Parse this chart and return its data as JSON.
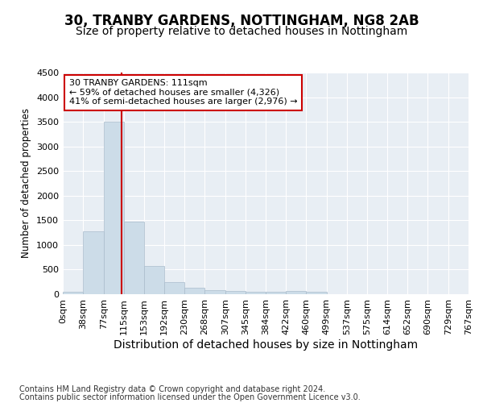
{
  "title": "30, TRANBY GARDENS, NOTTINGHAM, NG8 2AB",
  "subtitle": "Size of property relative to detached houses in Nottingham",
  "xlabel": "Distribution of detached houses by size in Nottingham",
  "ylabel": "Number of detached properties",
  "footer_line1": "Contains HM Land Registry data © Crown copyright and database right 2024.",
  "footer_line2": "Contains public sector information licensed under the Open Government Licence v3.0.",
  "annotation_line1": "30 TRANBY GARDENS: 111sqm",
  "annotation_line2": "← 59% of detached houses are smaller (4,326)",
  "annotation_line3": "41% of semi-detached houses are larger (2,976) →",
  "bar_edges": [
    0,
    38,
    77,
    115,
    153,
    192,
    230,
    268,
    307,
    345,
    384,
    422,
    460,
    499,
    537,
    575,
    614,
    652,
    690,
    729,
    767
  ],
  "bar_heights": [
    50,
    1280,
    3500,
    1480,
    580,
    245,
    130,
    75,
    60,
    50,
    50,
    70,
    50,
    0,
    0,
    0,
    0,
    0,
    0,
    0
  ],
  "bar_color": "#ccdce8",
  "bar_edge_color": "#aabccc",
  "vline_x": 111,
  "vline_color": "#cc0000",
  "ylim": [
    0,
    4500
  ],
  "yticks": [
    0,
    500,
    1000,
    1500,
    2000,
    2500,
    3000,
    3500,
    4000,
    4500
  ],
  "bg_color": "#e8eef4",
  "grid_color": "#ffffff",
  "fig_bg_color": "#ffffff",
  "title_fontsize": 12,
  "subtitle_fontsize": 10,
  "xlabel_fontsize": 10,
  "ylabel_fontsize": 8.5,
  "tick_fontsize": 8,
  "footer_fontsize": 7,
  "annot_fontsize": 8
}
